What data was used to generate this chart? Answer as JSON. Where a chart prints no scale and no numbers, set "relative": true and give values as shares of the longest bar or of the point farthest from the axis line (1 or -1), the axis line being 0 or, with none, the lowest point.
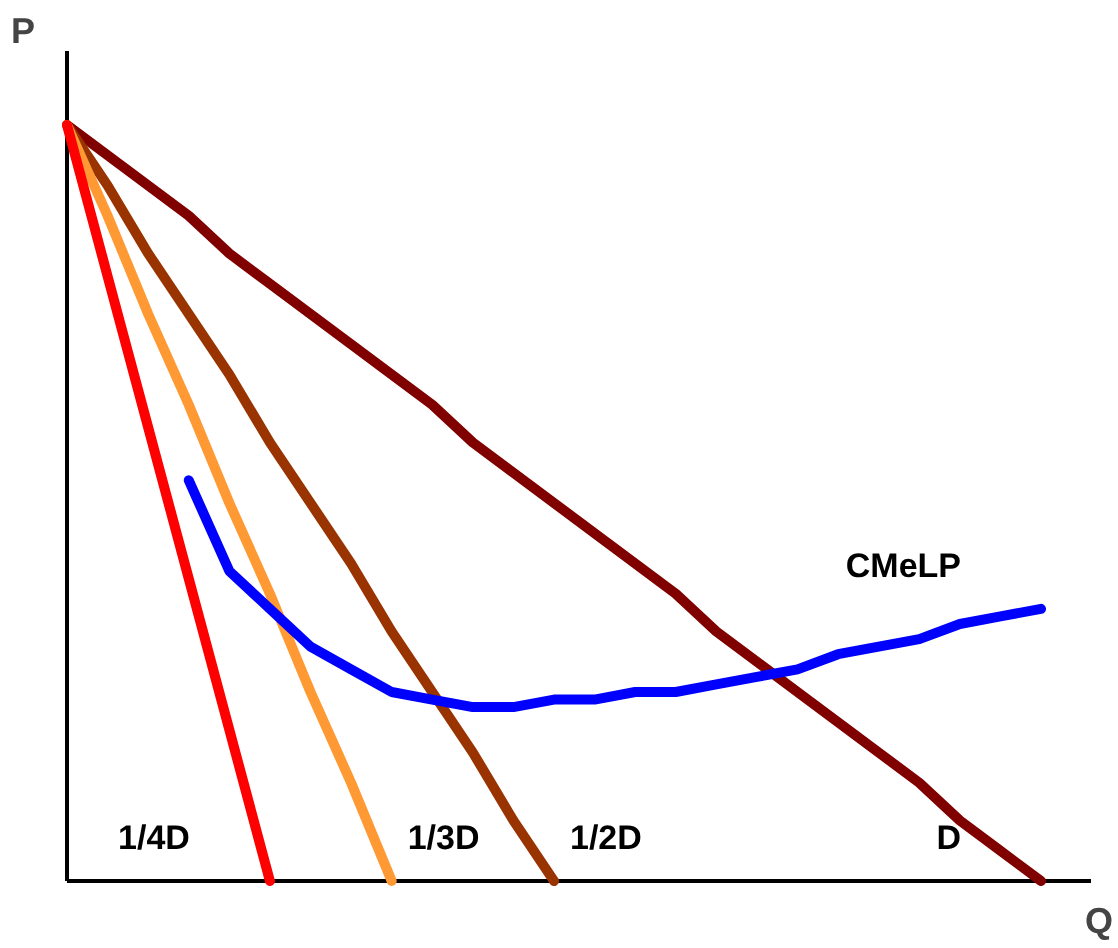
{
  "chart_data": {
    "type": "line",
    "relative": true,
    "xlabel": "Q",
    "ylabel": "P",
    "grid": false,
    "categories": [
      null,
      null,
      null,
      null,
      null,
      null,
      null,
      null,
      null,
      null,
      null,
      null,
      null,
      null,
      null,
      null,
      null,
      null,
      null,
      null,
      null,
      null,
      null,
      null,
      null
    ],
    "series": [
      {
        "name": "D",
        "color": "#800000",
        "values": [
          1,
          0.96,
          0.92,
          0.88,
          0.83,
          0.79,
          0.75,
          0.71,
          0.67,
          0.63,
          0.58,
          0.54,
          0.5,
          0.46,
          0.42,
          0.38,
          0.33,
          0.29,
          0.25,
          0.21,
          0.17,
          0.13,
          0.08,
          0.04,
          0
        ]
      },
      {
        "name": "1/2D",
        "color": "#993300",
        "values": [
          1,
          0.92,
          0.83,
          0.75,
          0.67,
          0.58,
          0.5,
          0.42,
          0.33,
          0.25,
          0.17,
          0.08,
          0,
          null,
          null,
          null,
          null,
          null,
          null,
          null,
          null,
          null,
          null,
          null,
          null
        ]
      },
      {
        "name": "1/3D",
        "color": "#ff9933",
        "values": [
          1,
          0.88,
          0.75,
          0.63,
          0.5,
          0.38,
          0.25,
          0.13,
          0,
          null,
          null,
          null,
          null,
          null,
          null,
          null,
          null,
          null,
          null,
          null,
          null,
          null,
          null,
          null,
          null
        ]
      },
      {
        "name": "1/4D",
        "color": "#ff0000",
        "values": [
          1,
          0.8,
          0.6,
          0.4,
          0.2,
          0,
          null,
          null,
          null,
          null,
          null,
          null,
          null,
          null,
          null,
          null,
          null,
          null,
          null,
          null,
          null,
          null,
          null,
          null,
          null
        ]
      },
      {
        "name": "CMeLP",
        "color": "#0000ff",
        "values": [
          null,
          null,
          null,
          0.53,
          0.41,
          0.36,
          0.31,
          0.28,
          0.25,
          0.24,
          0.23,
          0.23,
          0.24,
          0.24,
          0.25,
          0.25,
          0.26,
          0.27,
          0.28,
          0.3,
          0.31,
          0.32,
          0.34,
          0.35,
          0.36
        ]
      }
    ]
  }
}
